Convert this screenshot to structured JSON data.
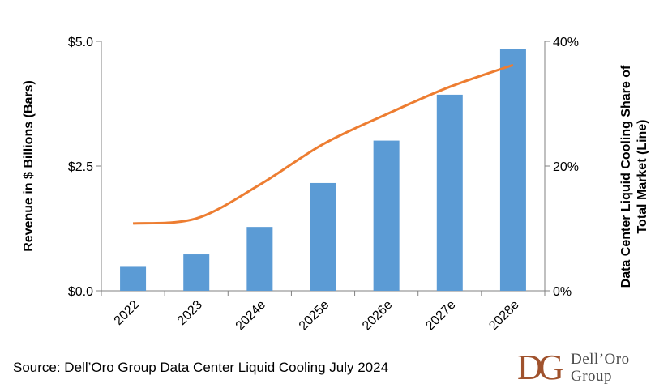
{
  "chart_data": {
    "type": "bar",
    "categories": [
      "2022",
      "2023",
      "2024e",
      "2025e",
      "2026e",
      "2027e",
      "2028e"
    ],
    "series": [
      {
        "name": "Revenue ($ Billions)",
        "type": "bar",
        "axis": "left",
        "color": "#5B9BD5",
        "values": [
          0.48,
          0.73,
          1.28,
          2.16,
          3.01,
          3.93,
          4.84
        ]
      },
      {
        "name": "Data Center Liquid Cooling Share of Total Market",
        "type": "line",
        "axis": "right",
        "color": "#ED7D31",
        "values": [
          10.8,
          11.6,
          17.0,
          23.5,
          28.3,
          32.7,
          36.2
        ]
      }
    ],
    "ylabel_left": "Revenue in $ Billions  (Bars)",
    "ylabel_right_lines": [
      "Data Center Liquid Cooling Share of",
      "Total Market (Line)"
    ],
    "ylim_left": [
      0,
      5
    ],
    "ylim_right": [
      0,
      40
    ],
    "yticks_left": [
      {
        "value": 0,
        "label": "$0.0"
      },
      {
        "value": 2.5,
        "label": "$2.5"
      },
      {
        "value": 5,
        "label": "$5.0"
      }
    ],
    "yticks_right": [
      {
        "value": 0,
        "label": "0%"
      },
      {
        "value": 20,
        "label": "20%"
      },
      {
        "value": 40,
        "label": "40%"
      }
    ],
    "grid": false
  },
  "source": "Source: Dell’Oro Group Data Center Liquid Cooling July 2024",
  "logo": {
    "line1": "Dell’Oro",
    "line2": "Group",
    "mark_color": "#A0522D"
  }
}
